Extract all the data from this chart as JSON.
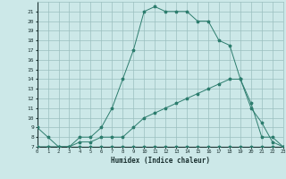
{
  "xlabel": "Humidex (Indice chaleur)",
  "bg_color": "#cce8e8",
  "line_color": "#2d7d6e",
  "grid_color": "#9bbfbf",
  "curve1_x": [
    0,
    1,
    2,
    3,
    4,
    5,
    6,
    7,
    8,
    9,
    10,
    11,
    12,
    13,
    14,
    15,
    16,
    17,
    18,
    19,
    20,
    21,
    22,
    23
  ],
  "curve1_y": [
    9,
    8,
    7,
    7,
    8,
    8,
    9,
    11,
    14,
    17,
    21,
    21.5,
    21,
    21,
    21,
    20,
    20,
    18,
    17.5,
    14,
    11.5,
    8,
    8,
    7
  ],
  "curve2_x": [
    0,
    1,
    2,
    3,
    4,
    5,
    6,
    7,
    8,
    9,
    10,
    11,
    12,
    13,
    14,
    15,
    16,
    17,
    18,
    19,
    20,
    21,
    22,
    23
  ],
  "curve2_y": [
    7,
    7,
    7,
    7,
    7.5,
    7.5,
    8,
    8,
    8,
    9,
    10,
    10.5,
    11,
    11.5,
    12,
    12.5,
    13,
    13.5,
    14,
    14,
    11,
    9.5,
    7.5,
    7
  ],
  "curve3_x": [
    0,
    1,
    2,
    3,
    4,
    5,
    6,
    7,
    8,
    9,
    10,
    11,
    12,
    13,
    14,
    15,
    16,
    17,
    18,
    19,
    20,
    21,
    22,
    23
  ],
  "curve3_y": [
    7,
    7,
    7,
    7,
    7,
    7,
    7,
    7,
    7,
    7,
    7,
    7,
    7,
    7,
    7,
    7,
    7,
    7,
    7,
    7,
    7,
    7,
    7,
    7
  ],
  "ylim": [
    7,
    22
  ],
  "xlim": [
    0,
    23
  ],
  "yticks": [
    7,
    8,
    9,
    10,
    11,
    12,
    13,
    14,
    15,
    16,
    17,
    18,
    19,
    20,
    21
  ],
  "xticks": [
    0,
    1,
    2,
    3,
    4,
    5,
    6,
    7,
    8,
    9,
    10,
    11,
    12,
    13,
    14,
    15,
    16,
    17,
    18,
    19,
    20,
    21,
    22,
    23
  ]
}
